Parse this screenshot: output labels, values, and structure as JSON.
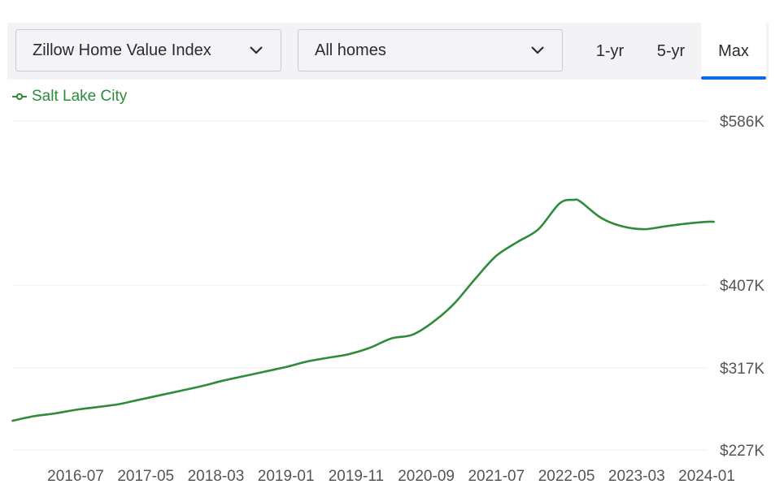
{
  "toolbar": {
    "metric_select": "Zillow Home Value Index",
    "home_type_select": "All homes",
    "tabs": [
      "1-yr",
      "5-yr",
      "Max"
    ],
    "active_tab": "Max"
  },
  "colors": {
    "series": "#2e8b3a",
    "accent": "#0d6be6",
    "grid": "#ececf0"
  },
  "chart_data": {
    "type": "line",
    "legend_placement": "top-left",
    "grid": true,
    "x_ticks": [
      "2016-07",
      "2017-05",
      "2018-03",
      "2019-01",
      "2019-11",
      "2020-09",
      "2021-07",
      "2022-05",
      "2023-03",
      "2024-01"
    ],
    "y_ticks": [
      "$586K",
      "$407K",
      "$317K",
      "$227K"
    ],
    "y_tick_values": [
      586000,
      407000,
      317000,
      227000
    ],
    "xlim": [
      "2015-10",
      "2024-03"
    ],
    "series": [
      {
        "name": "Salt Lake City",
        "x": [
          "2015-10",
          "2016-01",
          "2016-04",
          "2016-07",
          "2016-10",
          "2017-01",
          "2017-04",
          "2017-07",
          "2017-10",
          "2018-01",
          "2018-04",
          "2018-07",
          "2018-10",
          "2019-01",
          "2019-04",
          "2019-07",
          "2019-10",
          "2020-01",
          "2020-04",
          "2020-07",
          "2020-10",
          "2021-01",
          "2021-04",
          "2021-07",
          "2021-10",
          "2022-01",
          "2022-04",
          "2022-06",
          "2022-07",
          "2022-10",
          "2023-01",
          "2023-04",
          "2023-07",
          "2023-10",
          "2024-01",
          "2024-02"
        ],
        "values": [
          259000,
          264000,
          267000,
          271000,
          274000,
          277000,
          282000,
          287000,
          292000,
          297000,
          303000,
          308000,
          313000,
          318000,
          324000,
          328000,
          332000,
          339000,
          349000,
          353000,
          367000,
          387000,
          414000,
          439000,
          454000,
          468000,
          496000,
          500000,
          498000,
          480000,
          471000,
          468000,
          471000,
          474000,
          476000,
          476000
        ]
      }
    ]
  }
}
